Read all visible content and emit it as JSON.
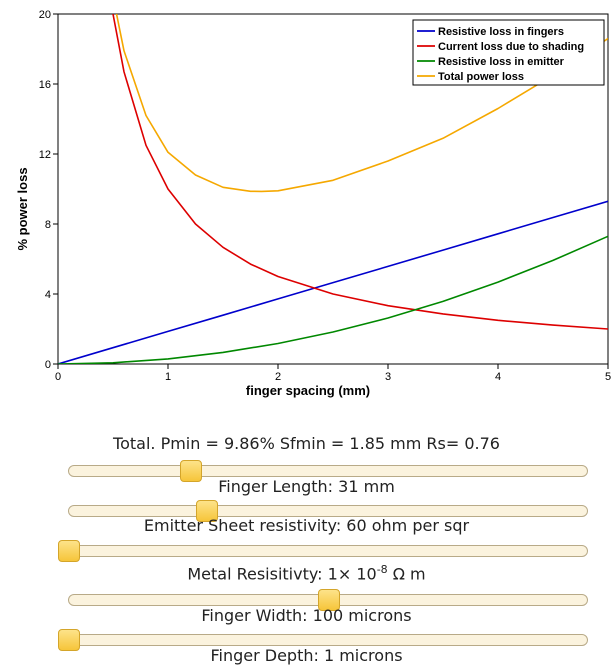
{
  "chart_data": {
    "type": "line",
    "xlabel": "finger spacing (mm)",
    "ylabel": "% power loss",
    "xlim": [
      0,
      5
    ],
    "ylim": [
      0,
      20
    ],
    "x_ticks": [
      "0",
      "1",
      "2",
      "3",
      "4",
      "5"
    ],
    "y_ticks": [
      "0",
      "4",
      "8",
      "12",
      "16",
      "20"
    ],
    "legend_position": "top-right",
    "series": [
      {
        "name": "Resistive loss in fingers",
        "color": "#0000cc",
        "x": [
          0,
          0.5,
          1,
          1.5,
          2,
          2.5,
          3,
          3.5,
          4,
          4.5,
          5
        ],
        "y": [
          0,
          0.93,
          1.86,
          2.79,
          3.72,
          4.65,
          5.58,
          6.51,
          7.44,
          8.37,
          9.3
        ]
      },
      {
        "name": "Current loss due to shading",
        "color": "#dd0000",
        "x": [
          0.5,
          0.6,
          0.8,
          1,
          1.25,
          1.5,
          1.75,
          2,
          2.5,
          3,
          3.5,
          4,
          4.5,
          5
        ],
        "y": [
          20,
          16.7,
          12.5,
          10,
          8,
          6.67,
          5.71,
          5,
          4,
          3.33,
          2.86,
          2.5,
          2.22,
          2
        ]
      },
      {
        "name": "Resistive loss in emitter",
        "color": "#008800",
        "x": [
          0,
          0.5,
          1,
          1.5,
          2,
          2.5,
          3,
          3.5,
          4,
          4.5,
          5
        ],
        "y": [
          0,
          0.07,
          0.29,
          0.66,
          1.17,
          1.83,
          2.63,
          3.58,
          4.68,
          5.92,
          7.3
        ]
      },
      {
        "name": "Total power loss",
        "color": "#f5a800",
        "x": [
          0.5,
          0.6,
          0.8,
          1,
          1.25,
          1.5,
          1.75,
          1.85,
          2,
          2.5,
          3,
          3.5,
          4,
          4.5,
          5
        ],
        "y": [
          21,
          17.9,
          14.2,
          12.1,
          10.8,
          10.1,
          9.87,
          9.86,
          9.9,
          10.5,
          11.6,
          12.9,
          14.6,
          16.5,
          18.6
        ]
      }
    ]
  },
  "summary": "Total. Pmin = 9.86% Sfmin = 1.85 mm Rs= 0.76",
  "sliders": [
    {
      "label": "Finger Length: 31 mm",
      "value": 0.235
    },
    {
      "label": "Emitter Sheet resistivity: 60 ohm per sqr",
      "value": 0.265
    },
    {
      "label_pre": "Metal Resisitivty: 1× 10",
      "label_sup": "-8",
      "label_post": " Ω m",
      "value": 0.0
    },
    {
      "label": "Finger Width: 100 microns",
      "value": 0.5
    },
    {
      "label": "Finger Depth: 1 microns",
      "value": 0.0
    }
  ]
}
